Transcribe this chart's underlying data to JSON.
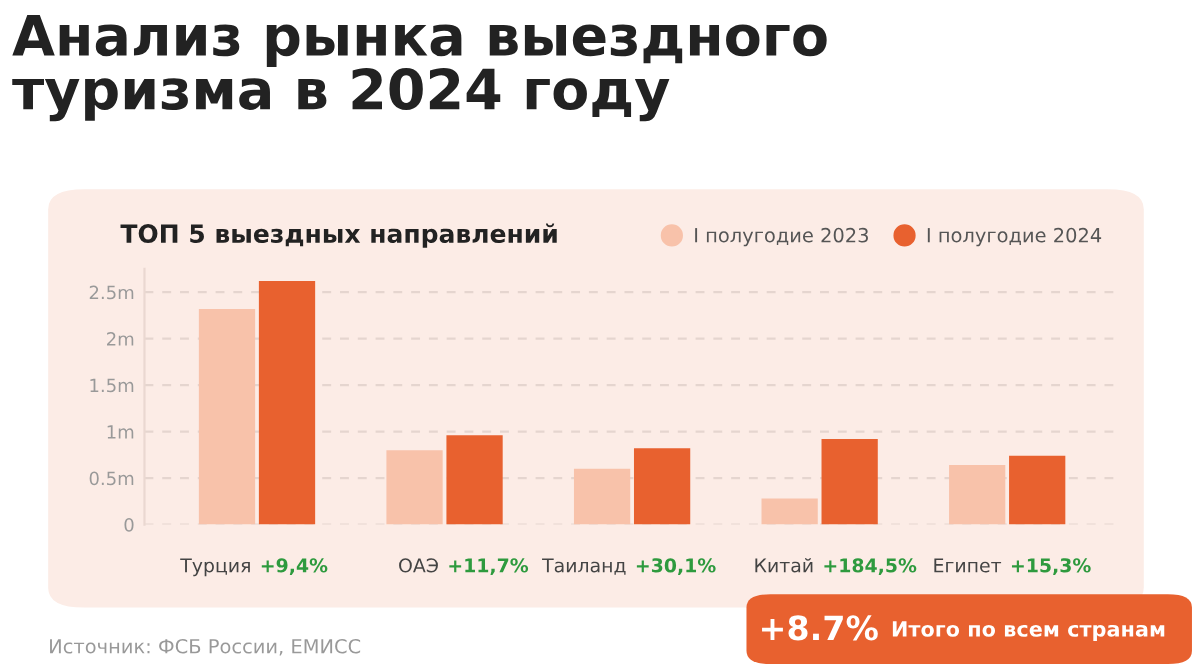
{
  "chart_data": {
    "type": "bar",
    "title": "Анализ рынка выездного\nтуризма в 2024 году",
    "subtitle": "ТОП 5 выездных направлений",
    "categories": [
      "Турция",
      "ОАЭ",
      "Таиланд",
      "Китай",
      "Египет"
    ],
    "series": [
      {
        "name": "I полугодие 2023",
        "color": "#f8c2aa",
        "values": [
          2.32,
          0.8,
          0.6,
          0.28,
          0.64
        ]
      },
      {
        "name": "I полугодие 2024",
        "color": "#e8612f",
        "values": [
          2.62,
          0.96,
          0.82,
          0.92,
          0.74
        ]
      }
    ],
    "ylim": [
      0,
      2.75
    ],
    "yticks": [
      0,
      {
        "value": 0.5,
        "label": "0.5m"
      },
      {
        "value": 1,
        "label": "1m"
      },
      {
        "value": 1.5,
        "label": "1.5m"
      },
      {
        "value": 2,
        "label": "2m"
      },
      {
        "value": 2.5,
        "label": "2.5m"
      }
    ],
    "grid": "y",
    "legend": "top right",
    "annotations": [
      "+9,4%",
      "+11,7%",
      "+30,1%",
      "+184,5%",
      "+15,3%",
      "+8.7%",
      "Итого по всем странам",
      "Источник: ФСБ России, ЕМИСС"
    ]
  }
}
